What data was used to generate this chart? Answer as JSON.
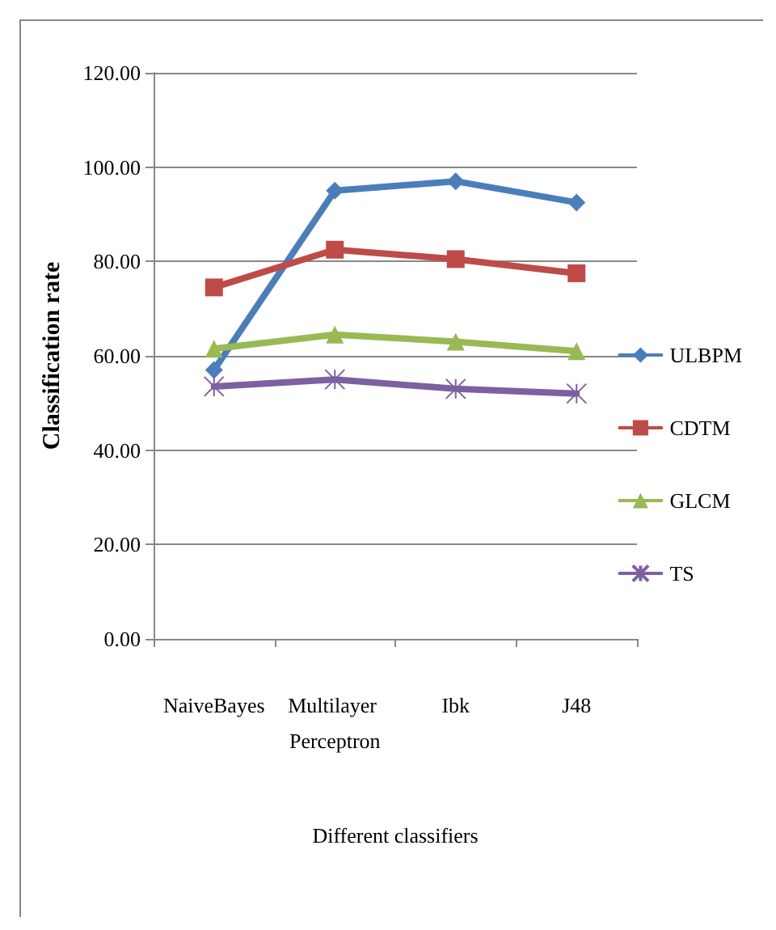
{
  "chart_data": {
    "type": "line",
    "xlabel": "Different classifiers",
    "ylabel": "Classification rate",
    "categories": [
      "NaiveBayes",
      "Multilayer Perceptron",
      "Ibk",
      "J48"
    ],
    "series": [
      {
        "name": "ULBPM",
        "color": "#4a7ebb",
        "values": [
          57,
          95,
          97,
          92.5
        ],
        "marker": "diamond"
      },
      {
        "name": "CDTM",
        "color": "#be4b48",
        "values": [
          74.5,
          82.5,
          80.5,
          77.5
        ],
        "marker": "square"
      },
      {
        "name": "GLCM",
        "color": "#98b954",
        "values": [
          61.5,
          64.5,
          63,
          61
        ],
        "marker": "triangle"
      },
      {
        "name": "TS",
        "color": "#7d60a0",
        "values": [
          53.5,
          55,
          53,
          52
        ],
        "marker": "cross"
      }
    ],
    "ylim": [
      0,
      120
    ],
    "yticks": [
      {
        "value": 0,
        "label": "0.00"
      },
      {
        "value": 20,
        "label": "20.00"
      },
      {
        "value": 40,
        "label": "40.00"
      },
      {
        "value": 60,
        "label": "60.00"
      },
      {
        "value": 80,
        "label": "80.00"
      },
      {
        "value": 100,
        "label": "100.00"
      },
      {
        "value": 120,
        "label": "120.00"
      }
    ],
    "grid": "y",
    "legend": "right",
    "line_style": "solid"
  }
}
